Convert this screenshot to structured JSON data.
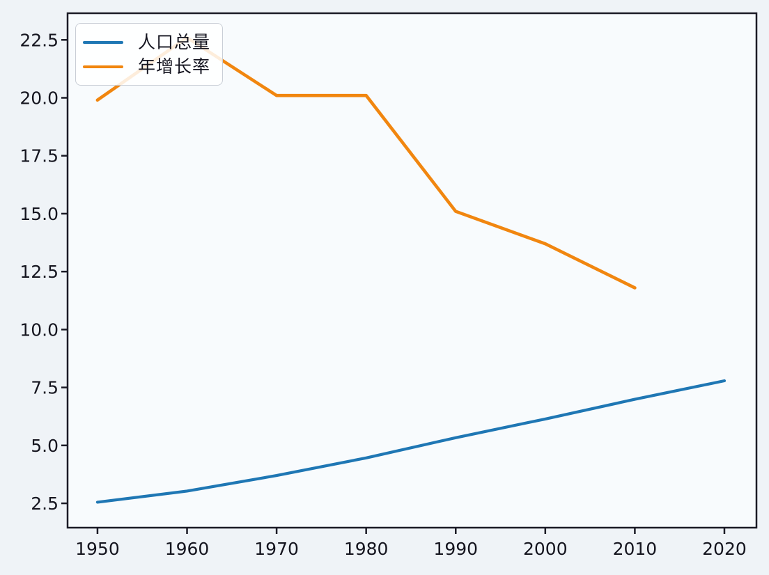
{
  "figure": {
    "background": "#eff3f7",
    "plot_background": "#f8fbfd",
    "spine_color": "#1b1b26",
    "tick_text_color": "#15151f"
  },
  "legend": {
    "position": "upper-left",
    "items": [
      {
        "label": "人口总量",
        "color": "#1f77b4"
      },
      {
        "label": "年增长率",
        "color": "#f1860f"
      }
    ]
  },
  "chart_data": {
    "type": "line",
    "title": "",
    "xlabel": "",
    "ylabel": "",
    "grid": false,
    "legend_position": "upper left",
    "xlim": [
      1946.66,
      2023.58
    ],
    "ylim": [
      1.45,
      23.65
    ],
    "xticks": {
      "values": [
        1950,
        1960,
        1970,
        1980,
        1990,
        2000,
        2010,
        2020
      ],
      "labels": [
        "1950",
        "1960",
        "1970",
        "1980",
        "1990",
        "2000",
        "2010",
        "2020"
      ]
    },
    "yticks": {
      "values": [
        2.5,
        5.0,
        7.5,
        10.0,
        12.5,
        15.0,
        17.5,
        20.0,
        22.5
      ],
      "labels": [
        "2.5",
        "5.0",
        "7.5",
        "10.0",
        "12.5",
        "15.0",
        "17.5",
        "20.0",
        "22.5"
      ]
    },
    "series": [
      {
        "name": "人口总量",
        "color": "#1f77b4",
        "line_width": 4.2,
        "x": [
          1950,
          1960,
          1970,
          1980,
          1990,
          2000,
          2010,
          2020
        ],
        "y": [
          2.55,
          3.03,
          3.7,
          4.46,
          5.33,
          6.14,
          6.99,
          7.79
        ]
      },
      {
        "name": "年增长率",
        "color": "#f1860f",
        "line_width": 4.6,
        "x": [
          1950,
          1960,
          1970,
          1980,
          1990,
          2000,
          2010
        ],
        "y": [
          19.9,
          22.6,
          20.1,
          20.1,
          15.1,
          13.7,
          11.8
        ]
      }
    ]
  }
}
